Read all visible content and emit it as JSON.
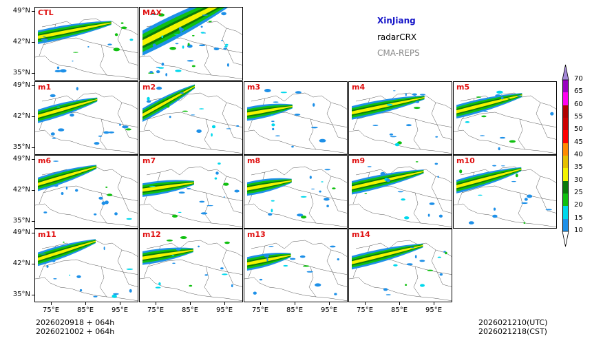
{
  "title": {
    "region": "XinJiang",
    "product": "radarCRX",
    "system": "CMA-REPS",
    "region_color": "#1515c8",
    "system_color": "#888888"
  },
  "panels": [
    {
      "label": "CTL"
    },
    {
      "label": "MAX"
    },
    {
      "label": "m1"
    },
    {
      "label": "m2"
    },
    {
      "label": "m3"
    },
    {
      "label": "m4"
    },
    {
      "label": "m5"
    },
    {
      "label": "m6"
    },
    {
      "label": "m7"
    },
    {
      "label": "m8"
    },
    {
      "label": "m9"
    },
    {
      "label": "m10"
    },
    {
      "label": "m11"
    },
    {
      "label": "m12"
    },
    {
      "label": "m13"
    },
    {
      "label": "m14"
    }
  ],
  "axes": {
    "lat_ticks": [
      "49°N",
      "42°N",
      "35°N"
    ],
    "lon_ticks": [
      "75°E",
      "85°E",
      "95°E"
    ]
  },
  "footer": {
    "init_line1": "2026020918  +  064h",
    "init_line2": "2026021002  +  064h",
    "valid_utc": "2026021210(UTC)",
    "valid_cst": "2026021218(CST)"
  },
  "colorbar": {
    "levels": [
      "10",
      "15",
      "20",
      "25",
      "30",
      "35",
      "40",
      "45",
      "50",
      "55",
      "60",
      "65",
      "70"
    ],
    "colors": [
      "#1e90e8",
      "#00d8ec",
      "#10c010",
      "#0a7a0a",
      "#f4f400",
      "#e6c000",
      "#ff8a00",
      "#ff0000",
      "#cc0000",
      "#b00000",
      "#ff00f0",
      "#9a00c0",
      "#a488d8"
    ],
    "under_color": "#ffffff",
    "over_color": "#a488d8"
  }
}
